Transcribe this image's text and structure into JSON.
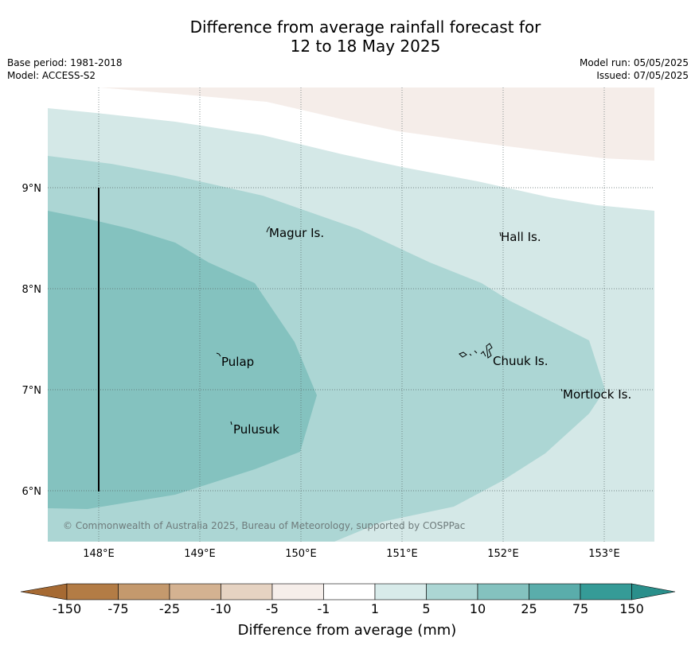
{
  "title": {
    "line1": "Difference from average rainfall forecast for",
    "line2": "12 to 18 May 2025"
  },
  "meta": {
    "base_period": "Base period: 1981-2018",
    "model": "Model: ACCESS-S2",
    "model_run": "Model run: 05/05/2025",
    "issued": "Issued: 07/05/2025"
  },
  "map": {
    "lat_labels": [
      "9°N",
      "8°N",
      "7°N",
      "6°N"
    ],
    "lon_labels": [
      "148°E",
      "149°E",
      "150°E",
      "151°E",
      "152°E",
      "153°E"
    ],
    "places": {
      "magur": "Magur Is.",
      "hall": "Hall Is.",
      "pulap": "Pulap",
      "chuuk": "Chuuk Is.",
      "mortlock": "Mortlock Is.",
      "pulusuk": "Pulusuk"
    },
    "copyright": "© Commonwealth of Australia 2025, Bureau of Meteorology, supported by COSPPac",
    "zone_colors": {
      "-5_to_-1": "#f5ede9",
      "1_to_5": "#d4e8e7",
      "5_to_10": "#acd6d4",
      "10_to_25": "#84c2bf"
    }
  },
  "colorbar": {
    "label": "Difference from average (mm)",
    "ticks": [
      "-150",
      "-75",
      "-25",
      "-10",
      "-5",
      "-1",
      "1",
      "5",
      "10",
      "25",
      "75",
      "150"
    ],
    "colors": [
      "#a66a33",
      "#b37c45",
      "#c4996d",
      "#d4b291",
      "#e6d3c2",
      "#f6eeea",
      "#ffffff",
      "#d8ebea",
      "#acd6d4",
      "#84c2bf",
      "#5aadab",
      "#359b97",
      "#2a8f8b"
    ]
  }
}
